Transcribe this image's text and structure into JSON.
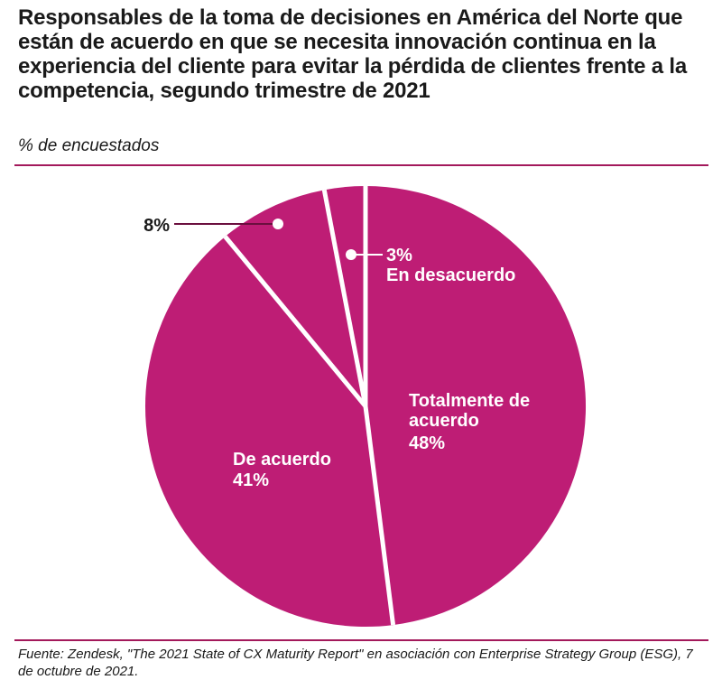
{
  "title": "Responsables de la toma de decisiones en América del Norte que están de acuerdo en que se necesita innovación continua en la experiencia del cliente para evitar la pérdida de clientes frente a la competencia, segundo trimestre de 2021",
  "subtitle": "% de encuestados",
  "source": "Fuente: Zendesk, \"The 2021 State of CX Maturity Report\" en asociación con Enterprise Strategy Group (ESG), 7 de octubre de 2021.",
  "colors": {
    "slice": "#be1d75",
    "separator": "#ffffff",
    "rule": "#a3195b",
    "leader": "#6b0f3f",
    "text": "#1a1a1a",
    "label_inside": "#ffffff"
  },
  "chart_data": {
    "type": "pie",
    "slices": [
      {
        "name": "Totalmente de acuerdo",
        "value": 48,
        "value_label": "48%"
      },
      {
        "name": "De acuerdo",
        "value": 41,
        "value_label": "41%"
      },
      {
        "name": "",
        "value": 8,
        "value_label": "8%"
      },
      {
        "name": "En desacuerdo",
        "value": 3,
        "value_label": "3%"
      }
    ]
  }
}
